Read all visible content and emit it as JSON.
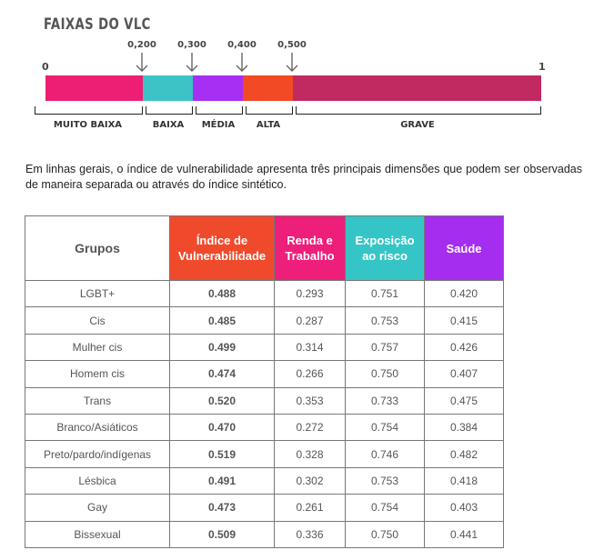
{
  "title": "FAIXAS DO VLC",
  "scale": {
    "start": "0",
    "end": "1",
    "ticks": [
      "0,200",
      "0,300",
      "0,400",
      "0,500"
    ],
    "categories": [
      "MUITO BAIXA",
      "BAIXA",
      "MÉDIA",
      "ALTA",
      "GRAVE"
    ],
    "colors": [
      "#ec1f74",
      "#3cc3c6",
      "#a72ef3",
      "#f24a24",
      "#c12a61"
    ]
  },
  "description": "Em linhas gerais, o índice de vulnerabilidade apresenta três principais dimensões que podem ser observadas de maneira separada ou através do índice sintético.",
  "table": {
    "headers": {
      "grupos": "Grupos",
      "indice": [
        "Índice de",
        "Vulnerabilidade"
      ],
      "renda": [
        "Renda e",
        "Trabalho"
      ],
      "exposicao": [
        "Exposição",
        "ao risco"
      ],
      "saude": "Saúde"
    },
    "rows": [
      {
        "grupo": "LGBT+",
        "indice": "0.488",
        "renda": "0.293",
        "exposicao": "0.751",
        "saude": "0.420"
      },
      {
        "grupo": "Cis",
        "indice": "0.485",
        "renda": "0.287",
        "exposicao": "0.753",
        "saude": "0.415"
      },
      {
        "grupo": "Mulher cis",
        "indice": "0.499",
        "renda": "0.314",
        "exposicao": "0.757",
        "saude": "0.426"
      },
      {
        "grupo": "Homem cis",
        "indice": "0.474",
        "renda": "0.266",
        "exposicao": "0.750",
        "saude": "0.407"
      },
      {
        "grupo": "Trans",
        "indice": "0.520",
        "renda": "0.353",
        "exposicao": "0.733",
        "saude": "0.475"
      },
      {
        "grupo": "Branco/Asiáticos",
        "indice": "0.470",
        "renda": "0.272",
        "exposicao": "0.754",
        "saude": "0.384"
      },
      {
        "grupo": "Preto/pardo/indígenas",
        "indice": "0.519",
        "renda": "0.328",
        "exposicao": "0.746",
        "saude": "0.482"
      },
      {
        "grupo": "Lésbica",
        "indice": "0.491",
        "renda": "0.302",
        "exposicao": "0.753",
        "saude": "0.418"
      },
      {
        "grupo": "Gay",
        "indice": "0.473",
        "renda": "0.261",
        "exposicao": "0.754",
        "saude": "0.403"
      },
      {
        "grupo": "Bissexual",
        "indice": "0.509",
        "renda": "0.336",
        "exposicao": "0.750",
        "saude": "0.441"
      }
    ]
  }
}
